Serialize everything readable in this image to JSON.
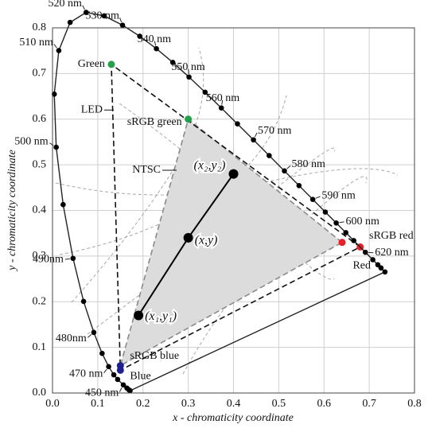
{
  "chart_data": {
    "type": "chromaticity",
    "xlabel": "x - chromaticity coordinate",
    "ylabel": "y - chromaticity  coordinate",
    "xlim": [
      0,
      0.8
    ],
    "ylim": [
      0,
      0.8
    ],
    "xticks": [
      {
        "value": 0,
        "label": "0.0"
      },
      0.1,
      0.2,
      0.3,
      0.4,
      0.5,
      0.6,
      0.7,
      0.8
    ],
    "yticks": [
      {
        "value": 0,
        "label": "0.0"
      },
      0.1,
      0.2,
      0.3,
      0.4,
      0.5,
      0.6,
      0.7,
      0.8
    ],
    "grid": true,
    "locus": {
      "x": [
        0.1714,
        0.1689,
        0.1644,
        0.1566,
        0.144,
        0.1355,
        0.1241,
        0.1096,
        0.0913,
        0.0687,
        0.0454,
        0.0235,
        0.0082,
        0.0039,
        0.0139,
        0.0389,
        0.0743,
        0.1142,
        0.1547,
        0.1929,
        0.2296,
        0.2658,
        0.3016,
        0.3373,
        0.3731,
        0.4087,
        0.4441,
        0.4788,
        0.5125,
        0.5448,
        0.5752,
        0.6029,
        0.627,
        0.6482,
        0.6658,
        0.6915,
        0.7079,
        0.719,
        0.726,
        0.7347
      ],
      "y": [
        0.0051,
        0.0069,
        0.0109,
        0.0177,
        0.0297,
        0.0399,
        0.0578,
        0.0868,
        0.1327,
        0.2007,
        0.295,
        0.4127,
        0.5384,
        0.6548,
        0.7502,
        0.812,
        0.8338,
        0.8262,
        0.8059,
        0.7816,
        0.7543,
        0.7243,
        0.6923,
        0.6589,
        0.6245,
        0.5896,
        0.5547,
        0.5202,
        0.4866,
        0.4544,
        0.4242,
        0.3965,
        0.3725,
        0.3514,
        0.334,
        0.3083,
        0.292,
        0.2809,
        0.274,
        0.2653
      ],
      "point_labels": [
        null,
        null,
        null,
        "450 nm",
        null,
        null,
        "470 nm",
        null,
        "480nm",
        null,
        "490nm",
        null,
        "500 nm",
        null,
        "510 nm",
        null,
        "520 nm",
        null,
        "530 nm",
        null,
        "540 nm",
        null,
        "550 nm",
        null,
        "560 nm",
        null,
        "570 nm",
        null,
        "580 nm",
        null,
        "590 nm",
        null,
        "600 nm",
        null,
        null,
        "620 nm",
        null,
        null,
        null,
        null
      ]
    },
    "gamuts": [
      {
        "fill": "#dcdcdc",
        "stroke": "#8a8a8a",
        "dash": "7 4",
        "x": [
          0.64,
          0.3,
          0.15
        ],
        "y": [
          0.33,
          0.6,
          0.06
        ],
        "vertex_labels": [
          "sRGB red",
          "sRGB green",
          "sRGB blue"
        ],
        "colors": [
          "#e8202a",
          "#22a04a",
          "#1f1f8f"
        ]
      },
      {
        "name": "LED",
        "fill": "none",
        "stroke": "#111111",
        "dash": "7 4",
        "x": [
          0.68,
          0.13,
          0.15
        ],
        "y": [
          0.32,
          0.72,
          0.05
        ],
        "vertex_labels": [
          "Red",
          "Green",
          "Blue"
        ],
        "colors": [
          "#e8202a",
          "#22a04a",
          "#1f1f8f"
        ]
      }
    ],
    "annotations": [
      "NTSC"
    ],
    "line_points": {
      "x": [
        0.19,
        0.3,
        0.4
      ],
      "y": [
        0.17,
        0.34,
        0.48
      ],
      "labels": [
        "(x₁,y₁)",
        "(x,y)",
        "(x₂,y₂)"
      ]
    }
  }
}
